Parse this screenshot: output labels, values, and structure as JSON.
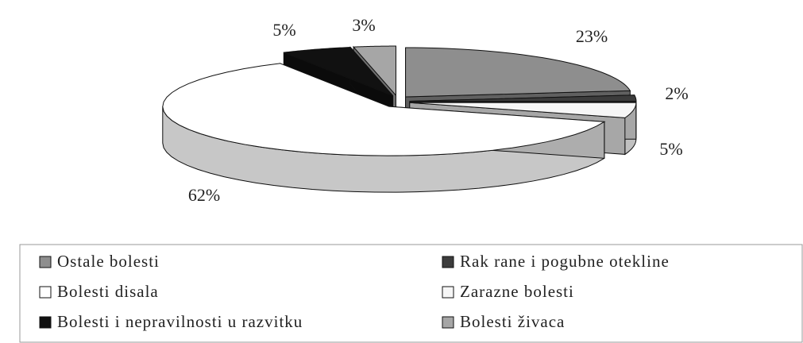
{
  "chart_data": {
    "type": "pie3d",
    "categories": [
      "Ostale bolesti",
      "Rak rane i pogubne otekline",
      "Zarazne bolesti",
      "Bolesti disala",
      "Bolesti i nepravilnosti u razvitku",
      "Bolesti živaca"
    ],
    "values": [
      23,
      2,
      5,
      62,
      5,
      3
    ],
    "value_labels": [
      "23%",
      "2%",
      "5%",
      "62%",
      "5%",
      "3%"
    ],
    "colors": [
      "#8e8e8e",
      "#3c3c3c",
      "#f6f6f6",
      "#ffffff",
      "#111111",
      "#a6a6a6"
    ],
    "legend": "bottom"
  }
}
